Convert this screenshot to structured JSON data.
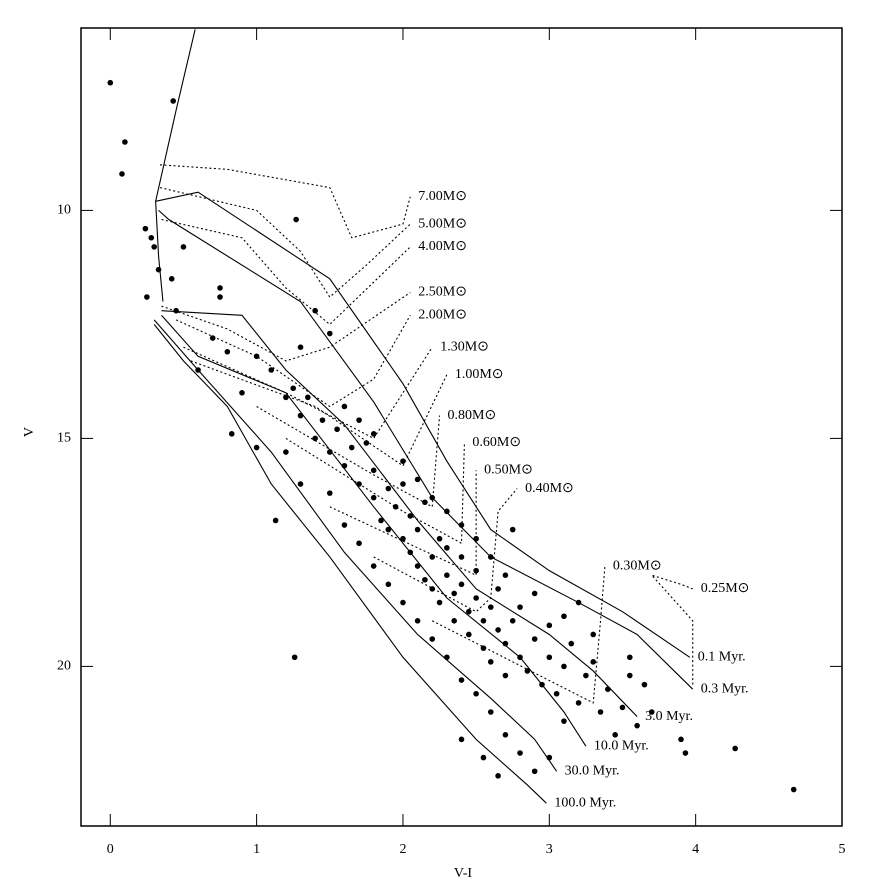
{
  "chart_data": {
    "type": "scatter",
    "x_label": "V-I",
    "y_label": "V",
    "xlim": [
      -0.2,
      5
    ],
    "ylim": [
      23.5,
      6
    ],
    "xticks": [
      0,
      1,
      2,
      3,
      4,
      5
    ],
    "yticks": [
      10,
      15,
      20
    ],
    "color": "#000000",
    "x": [
      0,
      0.43,
      0.1,
      0.08,
      1.27,
      1.26,
      4.67,
      0.24,
      0.28,
      0.3,
      0.33,
      0.25,
      0.5,
      0.42,
      0.45,
      0.75,
      0.75,
      0.83,
      1.13,
      4.27,
      3.93,
      3.9,
      1.0,
      1.1,
      1.2,
      1.25,
      1.3,
      1.35,
      1.4,
      1.45,
      1.5,
      1.55,
      1.6,
      1.65,
      1.7,
      1.75,
      1.8,
      1.8,
      1.85,
      1.9,
      1.9,
      1.95,
      2.0,
      2.0,
      2.05,
      2.05,
      2.1,
      2.1,
      2.15,
      2.15,
      2.2,
      2.2,
      2.25,
      2.25,
      2.3,
      2.3,
      2.35,
      2.35,
      2.4,
      2.4,
      2.45,
      2.45,
      2.5,
      2.5,
      2.55,
      2.55,
      2.6,
      2.6,
      2.65,
      2.65,
      2.7,
      2.7,
      2.75,
      2.8,
      2.8,
      2.85,
      2.9,
      2.95,
      3.0,
      3.0,
      3.05,
      3.1,
      3.15,
      3.2,
      3.25,
      3.3,
      3.35,
      3.4,
      3.5,
      3.55,
      3.6,
      3.7,
      1.5,
      1.6,
      1.7,
      1.8,
      1.9,
      2.0,
      2.1,
      2.2,
      2.3,
      2.4,
      2.5,
      2.6,
      2.7,
      2.8,
      2.9,
      2.4,
      2.55,
      2.65,
      2.0,
      2.1,
      2.2,
      2.3,
      2.4,
      2.5,
      2.75,
      2.6,
      2.7,
      2.9,
      3.1,
      3.3,
      3.2,
      1.2,
      1.3,
      1.0,
      0.9,
      0.8,
      0.7,
      0.6,
      1.5,
      1.6,
      1.7,
      1.8,
      1.3,
      1.4,
      3.55,
      3.45,
      3.65,
      3.1,
      3.0
    ],
    "values": [
      7.2,
      7.6,
      8.5,
      9.2,
      10.2,
      19.8,
      22.7,
      10.4,
      10.6,
      10.8,
      11.3,
      11.9,
      10.8,
      11.5,
      12.2,
      11.7,
      11.9,
      14.9,
      16.8,
      21.8,
      21.9,
      21.6,
      13.2,
      13.5,
      14.1,
      13.9,
      14.5,
      14.1,
      15.0,
      14.6,
      15.3,
      14.8,
      15.6,
      15.2,
      16.0,
      15.1,
      16.3,
      15.7,
      16.8,
      16.1,
      17.0,
      16.5,
      17.2,
      16.0,
      17.5,
      16.7,
      17.8,
      17.0,
      18.1,
      16.4,
      17.6,
      18.3,
      17.2,
      18.6,
      18.0,
      17.4,
      18.4,
      19.0,
      18.2,
      17.6,
      18.8,
      19.3,
      18.5,
      17.9,
      19.0,
      19.6,
      18.7,
      19.9,
      19.2,
      18.3,
      19.5,
      20.2,
      19.0,
      19.8,
      18.7,
      20.1,
      19.4,
      20.4,
      19.8,
      19.1,
      20.6,
      20.0,
      19.5,
      20.8,
      20.2,
      19.9,
      21.0,
      20.5,
      20.9,
      20.2,
      21.3,
      21.0,
      16.2,
      16.9,
      17.3,
      17.8,
      18.2,
      18.6,
      19.0,
      19.4,
      19.8,
      20.3,
      20.6,
      21.0,
      21.5,
      21.9,
      22.3,
      21.6,
      22.0,
      22.4,
      15.5,
      15.9,
      16.3,
      16.6,
      16.9,
      17.2,
      17.0,
      17.6,
      18.0,
      18.4,
      18.9,
      19.3,
      18.6,
      15.3,
      16.0,
      15.2,
      14.0,
      13.1,
      12.8,
      13.5,
      12.7,
      14.3,
      14.6,
      14.9,
      13.0,
      12.2,
      19.8,
      21.5,
      20.4,
      21.2,
      22.0
    ],
    "isochrones": [
      {
        "x": [
          0.58,
          0.45,
          0.31,
          0.33,
          0.36
        ],
        "values": [
          6.03,
          7.8,
          9.8,
          11.0,
          12.0
        ]
      },
      {
        "label": "0.1 Myr.",
        "x": [
          0.31,
          0.6,
          1.5,
          2.0,
          2.3,
          2.6,
          3.0,
          3.5,
          3.96
        ],
        "values": [
          9.8,
          9.6,
          11.5,
          13.8,
          15.5,
          17.0,
          17.9,
          18.8,
          19.8
        ]
      },
      {
        "label": "0.3 Myr.",
        "x": [
          0.33,
          0.4,
          1.3,
          1.8,
          2.2,
          2.6,
          3.2,
          3.6,
          3.98
        ],
        "values": [
          10.0,
          10.2,
          12.0,
          14.2,
          16.3,
          17.6,
          18.6,
          19.3,
          20.5
        ]
      },
      {
        "label": "3.0 Myr.",
        "x": [
          0.35,
          0.9,
          1.2,
          1.6,
          2.1,
          2.5,
          3.0,
          3.3,
          3.6
        ],
        "values": [
          12.2,
          12.3,
          13.5,
          14.7,
          16.8,
          18.3,
          19.3,
          20.1,
          21.1
        ]
      },
      {
        "label": "10.0 Myr.",
        "x": [
          0.35,
          0.6,
          1.2,
          1.8,
          2.3,
          2.8,
          3.1,
          3.25
        ],
        "values": [
          12.3,
          13.2,
          14.0,
          16.5,
          18.5,
          19.8,
          21.0,
          21.75
        ]
      },
      {
        "label": "30.0 Myr.",
        "x": [
          0.3,
          0.6,
          1.1,
          1.6,
          2.1,
          2.6,
          2.9,
          3.05
        ],
        "values": [
          12.4,
          13.5,
          15.3,
          17.5,
          19.3,
          20.7,
          21.6,
          22.3
        ]
      },
      {
        "label": "100.0 Myr.",
        "x": [
          0.3,
          0.5,
          0.8,
          1.1,
          1.5,
          2.0,
          2.5,
          2.85,
          2.98
        ],
        "values": [
          12.5,
          13.3,
          14.3,
          16.0,
          17.6,
          19.8,
          21.6,
          22.6,
          23.0
        ]
      }
    ],
    "tracks": [
      {
        "label": "7.00M⊙",
        "x": [
          0.34,
          0.8,
          1.5,
          1.65,
          2.0,
          2.05
        ],
        "values": [
          9.0,
          9.1,
          9.5,
          10.6,
          10.3,
          9.7
        ]
      },
      {
        "label": "5.00M⊙",
        "x": [
          0.34,
          1.0,
          1.3,
          1.5,
          1.75,
          2.05
        ],
        "values": [
          9.5,
          10.0,
          10.9,
          11.9,
          11.2,
          10.3
        ]
      },
      {
        "label": "4.00M⊙",
        "x": [
          0.35,
          0.9,
          1.2,
          1.5,
          2.05
        ],
        "values": [
          10.2,
          10.6,
          11.7,
          12.5,
          10.8
        ]
      },
      {
        "label": "2.50M⊙",
        "x": [
          0.35,
          0.8,
          1.2,
          1.5,
          2.05
        ],
        "values": [
          12.1,
          12.6,
          13.3,
          13.0,
          11.8
        ]
      },
      {
        "label": "2.00M⊙",
        "x": [
          0.45,
          1.0,
          1.5,
          1.8,
          2.05
        ],
        "values": [
          12.4,
          13.2,
          14.3,
          13.7,
          12.3
        ]
      },
      {
        "label": "1.30M⊙",
        "x": [
          0.5,
          1.2,
          1.8,
          2.2
        ],
        "values": [
          13.0,
          14.0,
          15.0,
          13.0
        ]
      },
      {
        "label": "1.00M⊙",
        "x": [
          0.55,
          1.4,
          2.0,
          2.3
        ],
        "values": [
          13.3,
          14.3,
          15.6,
          13.6
        ]
      },
      {
        "label": "0.80M⊙",
        "x": [
          1.0,
          1.8,
          2.2,
          2.25
        ],
        "values": [
          14.3,
          15.8,
          16.5,
          14.5
        ]
      },
      {
        "label": "0.60M⊙",
        "x": [
          1.2,
          2.0,
          2.4,
          2.42
        ],
        "values": [
          15.0,
          16.6,
          17.3,
          15.1
        ]
      },
      {
        "label": "0.50M⊙",
        "x": [
          1.5,
          2.3,
          2.5,
          2.5
        ],
        "values": [
          16.5,
          17.7,
          18.0,
          15.7
        ]
      },
      {
        "label": "0.40M⊙",
        "x": [
          1.8,
          2.5,
          2.6,
          2.65,
          2.78
        ],
        "values": [
          17.6,
          18.8,
          18.5,
          16.6,
          16.1
        ]
      },
      {
        "label": "0.30M⊙",
        "x": [
          2.2,
          3.3,
          3.35,
          3.38
        ],
        "values": [
          19.0,
          20.8,
          19.0,
          17.8
        ]
      },
      {
        "label": "0.25M⊙",
        "x": [
          3.98,
          3.98,
          3.7,
          3.9,
          3.98
        ],
        "values": [
          20.4,
          19.0,
          18.0,
          18.2,
          18.3
        ]
      }
    ]
  }
}
